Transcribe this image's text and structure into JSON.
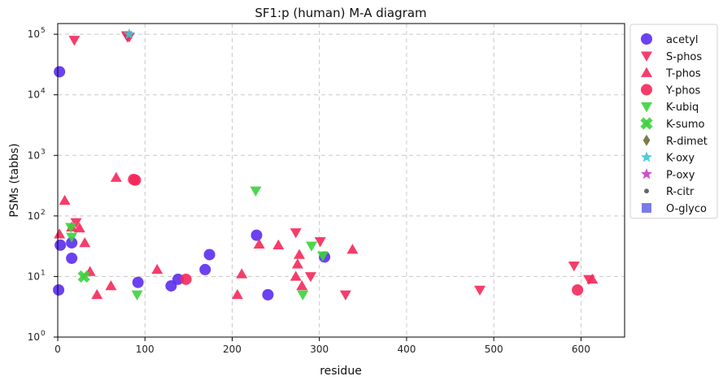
{
  "chart_data": {
    "type": "scatter",
    "title": "SF1:p (human) M-A diagram",
    "xlabel": "residue",
    "ylabel": "PSMs (tabbs)",
    "xlim": [
      0,
      650
    ],
    "ylim": [
      1,
      150000
    ],
    "y_scale": "log",
    "x_ticks": [
      0,
      100,
      200,
      300,
      400,
      500,
      600
    ],
    "y_ticks": [
      {
        "value": 1,
        "base": "10",
        "exp": "0"
      },
      {
        "value": 10,
        "base": "10",
        "exp": "1"
      },
      {
        "value": 100,
        "base": "10",
        "exp": "2"
      },
      {
        "value": 1000,
        "base": "10",
        "exp": "3"
      },
      {
        "value": 10000,
        "base": "10",
        "exp": "4"
      },
      {
        "value": 100000,
        "base": "10",
        "exp": "5"
      }
    ],
    "grid": true,
    "legend_position": "outside-right",
    "series": [
      {
        "name": "acetyl",
        "marker": "circle",
        "color": "#5b2cf0",
        "points": [
          [
            2,
            24000
          ],
          [
            3,
            33
          ],
          [
            1,
            6
          ],
          [
            16,
            36
          ],
          [
            16,
            20
          ],
          [
            92,
            8
          ],
          [
            130,
            7
          ],
          [
            138,
            9
          ],
          [
            169,
            13
          ],
          [
            174,
            23
          ],
          [
            228,
            48
          ],
          [
            241,
            5
          ],
          [
            306,
            21
          ]
        ]
      },
      {
        "name": "S-phos",
        "marker": "triangle-down",
        "color": "#f5285a",
        "points": [
          [
            79,
            95000
          ],
          [
            80,
            90000
          ],
          [
            82,
            90000
          ],
          [
            19,
            80000
          ],
          [
            21,
            78
          ],
          [
            273,
            53
          ],
          [
            301,
            38
          ],
          [
            290,
            10
          ],
          [
            330,
            5
          ],
          [
            484,
            6
          ],
          [
            592,
            15
          ],
          [
            609,
            9
          ]
        ]
      },
      {
        "name": "T-phos",
        "marker": "triangle-up",
        "color": "#f5285a",
        "points": [
          [
            2,
            50
          ],
          [
            8,
            180
          ],
          [
            16,
            65
          ],
          [
            25,
            63
          ],
          [
            31,
            36
          ],
          [
            37,
            12
          ],
          [
            45,
            5
          ],
          [
            61,
            7
          ],
          [
            67,
            430
          ],
          [
            114,
            13
          ],
          [
            206,
            5
          ],
          [
            211,
            11
          ],
          [
            231,
            34
          ],
          [
            253,
            33
          ],
          [
            273,
            10
          ],
          [
            275,
            16
          ],
          [
            277,
            23
          ],
          [
            280,
            7
          ],
          [
            338,
            28
          ],
          [
            613,
            9
          ]
        ]
      },
      {
        "name": "Y-phos",
        "marker": "circle",
        "color": "#f5285a",
        "points": [
          [
            87,
            400
          ],
          [
            89,
            390
          ],
          [
            147,
            9
          ],
          [
            596,
            6
          ]
        ]
      },
      {
        "name": "K-ubiq",
        "marker": "triangle-down",
        "color": "#3cd23c",
        "points": [
          [
            15,
            65
          ],
          [
            16,
            45
          ],
          [
            91,
            5
          ],
          [
            227,
            260
          ],
          [
            281,
            5
          ],
          [
            291,
            32
          ],
          [
            304,
            22
          ]
        ]
      },
      {
        "name": "K-sumo",
        "marker": "x",
        "color": "#3cd23c",
        "points": [
          [
            30,
            10
          ]
        ]
      },
      {
        "name": "R-dimet",
        "marker": "diamond",
        "color": "#6b6b3a",
        "points": []
      },
      {
        "name": "K-oxy",
        "marker": "star",
        "color": "#3cc8d2",
        "points": [
          [
            82,
            100000
          ]
        ]
      },
      {
        "name": "P-oxy",
        "marker": "star",
        "color": "#c83cc8",
        "points": []
      },
      {
        "name": "R-citr",
        "marker": "dot",
        "color": "#555555",
        "points": []
      },
      {
        "name": "O-glyco",
        "marker": "square",
        "color": "#6b6be6",
        "points": []
      }
    ]
  }
}
